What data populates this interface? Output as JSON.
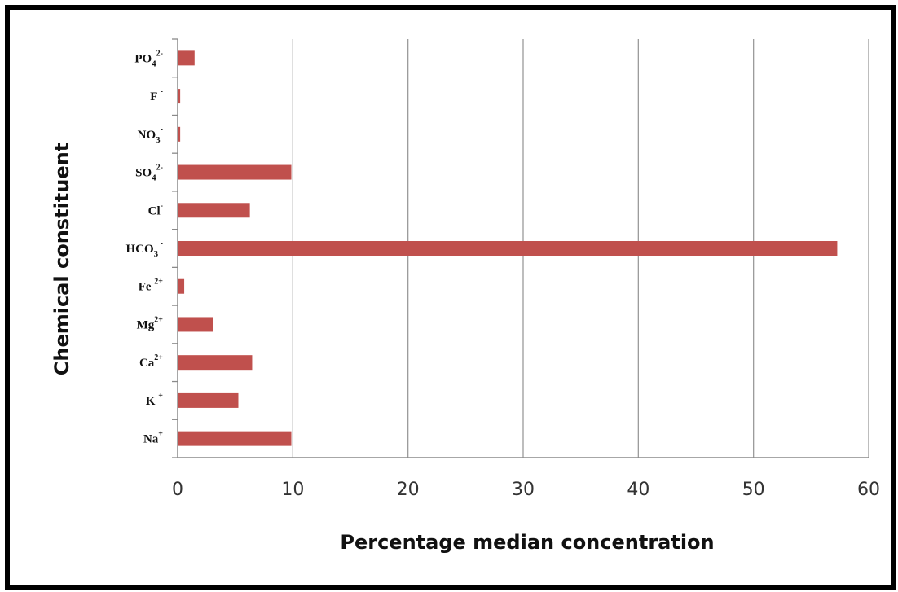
{
  "chart_data": {
    "type": "bar",
    "orientation": "horizontal",
    "xlabel": "Percentage median concentration",
    "ylabel": "Chemical constituent",
    "xlim": [
      0,
      60
    ],
    "xticks": [
      0,
      10,
      20,
      30,
      40,
      50,
      60
    ],
    "grid": "vertical",
    "bar_color": "#c0504d",
    "categories": [
      {
        "base": "Na",
        "sup": "+",
        "sub": ""
      },
      {
        "base": "K ",
        "sup": "+",
        "sub": ""
      },
      {
        "base": "Ca",
        "sup": "2+",
        "sub": ""
      },
      {
        "base": "Mg",
        "sup": "2+",
        "sub": ""
      },
      {
        "base": "Fe ",
        "sup": "2+",
        "sub": ""
      },
      {
        "base": "HCO",
        "sub": "3",
        "sup": " -"
      },
      {
        "base": "Cl",
        "sup": "-",
        "sub": ""
      },
      {
        "base": "SO",
        "sub": "4",
        "sup": "2-"
      },
      {
        "base": "NO",
        "sub": "3",
        "sup": "-"
      },
      {
        "base": "F ",
        "sup": "-",
        "sub": ""
      },
      {
        "base": "PO",
        "sub": "4",
        "sup": "2-"
      }
    ],
    "values": [
      9.8,
      5.2,
      6.4,
      3.0,
      0.5,
      57.2,
      6.2,
      9.8,
      0.15,
      0.15,
      1.4
    ]
  }
}
